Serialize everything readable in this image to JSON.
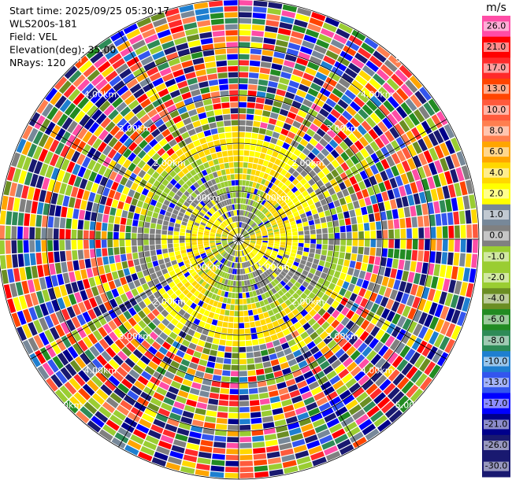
{
  "chart_data": {
    "type": "ppi",
    "info": [
      "Start time: 2025/09/25 05:30:17",
      "WLS200s-181",
      "Field: VEL",
      "Elevation(deg): 35.00",
      "NRays: 120"
    ],
    "range_rings": [
      "1.00km",
      "2.00km",
      "3.00km",
      "4.00km",
      "5.00km"
    ],
    "colorbar": {
      "unit": "m/s",
      "ticks": [
        {
          "value": 26,
          "label": "26.0"
        },
        {
          "value": 21,
          "label": "21.0"
        },
        {
          "value": 17,
          "label": "17.0"
        },
        {
          "value": 13,
          "label": "13.0"
        },
        {
          "value": 10,
          "label": "10.0"
        },
        {
          "value": 8,
          "label": "8.0"
        },
        {
          "value": 6,
          "label": "6.0"
        },
        {
          "value": 4,
          "label": "4.0"
        },
        {
          "value": 2,
          "label": "2.0"
        },
        {
          "value": 1,
          "label": "1.0"
        },
        {
          "value": 0,
          "label": "0.0"
        },
        {
          "value": -1,
          "label": "-1.0"
        },
        {
          "value": -2,
          "label": "-2.0"
        },
        {
          "value": -4,
          "label": "-4.0"
        },
        {
          "value": -6,
          "label": "-6.0"
        },
        {
          "value": -8,
          "label": "-8.0"
        },
        {
          "value": -10,
          "label": "-10.0"
        },
        {
          "value": -13,
          "label": "-13.0"
        },
        {
          "value": -17,
          "label": "-17.0"
        },
        {
          "value": -21,
          "label": "-21.0"
        },
        {
          "value": -26,
          "label": "-26.0"
        },
        {
          "value": -30,
          "label": "-30.0"
        }
      ],
      "colors": [
        "#ff4da6",
        "#ff0000",
        "#ff2a2a",
        "#ff4500",
        "#ff5a3c",
        "#ff7f50",
        "#ffa500",
        "#ffd700",
        "#ffff00",
        "#778899",
        "#808080",
        "#9acd32",
        "#9acd32",
        "#6b8e23",
        "#228b22",
        "#2e8b57",
        "#1e7fd0",
        "#3355ee",
        "#0000ff",
        "#00008b",
        "#191970",
        "#191970"
      ]
    }
  }
}
